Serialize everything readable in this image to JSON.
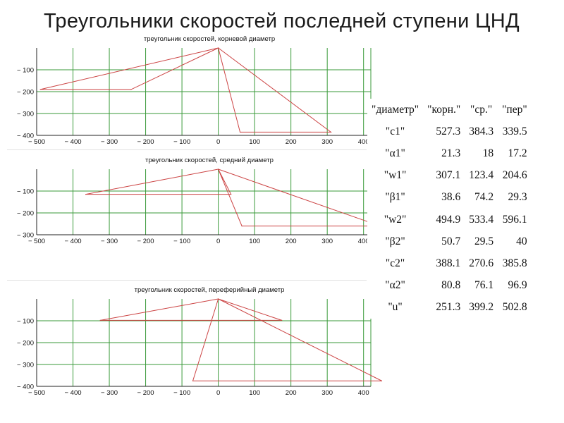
{
  "title": "Треугольники скоростей последней ступени ЦНД",
  "colors": {
    "grid": "#3a9a3a",
    "line": "#cc4444",
    "axis": "#222222",
    "text": "#111111"
  },
  "chart_data": [
    {
      "type": "line",
      "title": "треугольник скоростей, корневой диаметр",
      "xlim": [
        -500,
        420
      ],
      "ylim": [
        -400,
        0
      ],
      "xticks": [
        -500,
        -400,
        -300,
        -200,
        -100,
        0,
        100,
        200,
        300,
        400
      ],
      "yticks": [
        -100,
        -200,
        -300,
        -400
      ],
      "grid": true,
      "series": [
        {
          "values": [
            [
              0,
              0
            ],
            [
              -490,
              -190
            ],
            [
              -240,
              -190
            ],
            [
              0,
              0
            ],
            [
              60,
              -385
            ],
            [
              310,
              -385
            ],
            [
              0,
              0
            ]
          ]
        }
      ]
    },
    {
      "type": "line",
      "title": "треугольник скоростей, средний диаметр",
      "xlim": [
        -500,
        420
      ],
      "ylim": [
        -300,
        0
      ],
      "xticks": [
        -500,
        -400,
        -300,
        -200,
        -100,
        0,
        100,
        200,
        300,
        400
      ],
      "yticks": [
        -100,
        -200,
        -300
      ],
      "grid": true,
      "series": [
        {
          "values": [
            [
              0,
              0
            ],
            [
              -365,
              -115
            ],
            [
              35,
              -115
            ],
            [
              0,
              0
            ],
            [
              65,
              -260
            ],
            [
              420,
              -260
            ]
          ]
        },
        {
          "values": [
            [
              0,
              0
            ],
            [
              420,
              -245
            ]
          ]
        }
      ]
    },
    {
      "type": "line",
      "title": "треугольник скоростей, переферийный диаметр",
      "xlim": [
        -500,
        420
      ],
      "ylim": [
        -400,
        0
      ],
      "xticks": [
        -500,
        -400,
        -300,
        -200,
        -100,
        0,
        100,
        200,
        300,
        400
      ],
      "yticks": [
        -100,
        -200,
        -300,
        -400
      ],
      "grid": true,
      "series": [
        {
          "values": [
            [
              0,
              0
            ],
            [
              -325,
              -98
            ],
            [
              175,
              -98
            ],
            [
              0,
              0
            ],
            [
              -70,
              -375
            ],
            [
              450,
              -375
            ],
            [
              0,
              0
            ]
          ]
        }
      ]
    }
  ],
  "table": {
    "headers": [
      "\"диаметр\"",
      "\"корн.\"",
      "\"ср.\"",
      "\"пер\""
    ],
    "rows": [
      [
        "\"c1\"",
        "527.3",
        "384.3",
        "339.5"
      ],
      [
        "\"α1\"",
        "21.3",
        "18",
        "17.2"
      ],
      [
        "\"w1\"",
        "307.1",
        "123.4",
        "204.6"
      ],
      [
        "\"β1\"",
        "38.6",
        "74.2",
        "29.3"
      ],
      [
        "\"w2\"",
        "494.9",
        "533.4",
        "596.1"
      ],
      [
        "\"β2\"",
        "50.7",
        "29.5",
        "40"
      ],
      [
        "\"c2\"",
        "388.1",
        "270.6",
        "385.8"
      ],
      [
        "\"α2\"",
        "80.8",
        "76.1",
        "96.9"
      ],
      [
        "\"u\"",
        "251.3",
        "399.2",
        "502.8"
      ]
    ]
  }
}
